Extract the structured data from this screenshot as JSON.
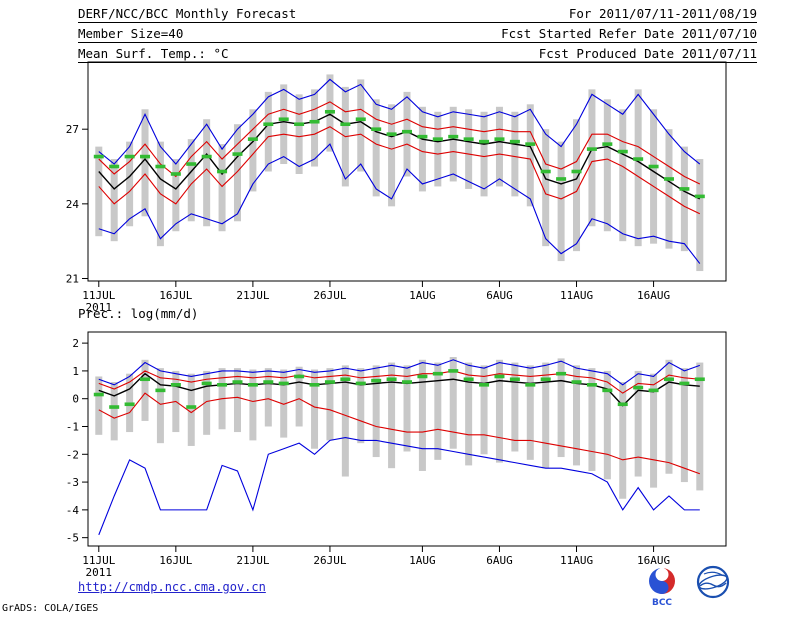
{
  "header": {
    "title": "DERF/NCC/BCC Monthly Forecast",
    "period": "For 2011/07/11-2011/08/19",
    "member_size": "Member Size=40",
    "refer_date": "Fcst Started Refer Date 2011/07/10",
    "produced_date": "Fcst Produced Date 2011/07/11"
  },
  "footer": {
    "url": "http://cmdp.ncc.cma.gov.cn",
    "credit": "GrADS: COLA/IGES",
    "bcc_logo_label": "BCC"
  },
  "chart_data": [
    {
      "type": "line",
      "title": "Mean Surf. Temp.: °C",
      "x_tick_labels": [
        "11JUL",
        "16JUL",
        "21JUL",
        "26JUL",
        "1AUG",
        "6AUG",
        "11AUG",
        "16AUG"
      ],
      "x_tick_days": [
        0,
        5,
        10,
        15,
        21,
        26,
        31,
        36
      ],
      "x_year_label": "2011",
      "ylim": [
        20.9,
        29.7
      ],
      "yticks": [
        21,
        24,
        27
      ],
      "grid": false,
      "legend": "none",
      "series": {
        "spread_bars": {
          "name": "ensemble-spread-bars",
          "color": "#c8c8c8",
          "high": [
            26.3,
            25.8,
            26.5,
            27.8,
            26.5,
            25.8,
            26.6,
            27.4,
            26.4,
            27.2,
            27.8,
            28.5,
            28.8,
            28.4,
            28.6,
            29.2,
            28.7,
            29.0,
            28.2,
            28.0,
            28.5,
            27.9,
            27.7,
            27.9,
            27.8,
            27.7,
            27.9,
            27.7,
            28.0,
            27.0,
            26.5,
            27.4,
            28.6,
            28.2,
            27.8,
            28.6,
            27.8,
            27.0,
            26.3,
            25.8
          ],
          "low": [
            22.7,
            22.5,
            23.1,
            23.5,
            22.3,
            22.9,
            23.3,
            23.1,
            22.9,
            23.3,
            24.5,
            25.3,
            25.6,
            25.2,
            25.5,
            26.1,
            24.7,
            25.3,
            24.3,
            23.9,
            25.1,
            24.5,
            24.7,
            24.9,
            24.6,
            24.3,
            24.7,
            24.3,
            23.9,
            22.3,
            21.7,
            22.1,
            23.1,
            22.9,
            22.5,
            22.3,
            22.4,
            22.2,
            22.1,
            21.3
          ]
        },
        "max": {
          "name": "ensemble-max",
          "color": "#0000dd",
          "values": [
            26.1,
            25.6,
            26.3,
            27.6,
            26.3,
            25.6,
            26.4,
            27.2,
            26.2,
            27.0,
            27.6,
            28.3,
            28.6,
            28.2,
            28.4,
            29.0,
            28.5,
            28.8,
            28.0,
            27.8,
            28.3,
            27.7,
            27.5,
            27.7,
            27.6,
            27.5,
            27.7,
            27.5,
            27.8,
            26.8,
            26.3,
            27.2,
            28.4,
            28.0,
            27.6,
            28.4,
            27.6,
            26.8,
            26.1,
            25.6
          ]
        },
        "min": {
          "name": "ensemble-min",
          "color": "#0000dd",
          "values": [
            23.0,
            22.8,
            23.4,
            23.8,
            22.6,
            23.2,
            23.6,
            23.4,
            23.2,
            23.6,
            24.8,
            25.6,
            25.9,
            25.5,
            25.8,
            26.4,
            25.0,
            25.6,
            24.6,
            24.2,
            25.4,
            24.8,
            25.0,
            25.2,
            24.9,
            24.6,
            25.0,
            24.6,
            24.2,
            22.6,
            22.0,
            22.4,
            23.4,
            23.2,
            22.8,
            22.6,
            22.7,
            22.5,
            22.4,
            21.6
          ]
        },
        "upper": {
          "name": "upper-spread",
          "color": "#dd0000",
          "values": [
            25.8,
            25.2,
            25.7,
            26.4,
            25.6,
            25.1,
            25.9,
            26.5,
            25.8,
            26.4,
            27.0,
            27.6,
            27.8,
            27.6,
            27.8,
            28.1,
            27.7,
            27.8,
            27.4,
            27.2,
            27.4,
            27.1,
            27.0,
            27.1,
            27.0,
            26.9,
            27.0,
            26.9,
            26.9,
            25.6,
            25.4,
            25.7,
            26.8,
            26.8,
            26.5,
            26.3,
            25.9,
            25.5,
            25.1,
            24.8
          ]
        },
        "lower": {
          "name": "lower-spread",
          "color": "#dd0000",
          "values": [
            24.7,
            24.0,
            24.5,
            25.2,
            24.4,
            24.0,
            24.8,
            25.4,
            24.7,
            25.3,
            26.0,
            26.7,
            26.8,
            26.7,
            26.8,
            27.1,
            26.7,
            26.8,
            26.4,
            26.2,
            26.4,
            26.1,
            26.0,
            26.1,
            26.0,
            25.9,
            26.0,
            25.9,
            25.8,
            24.4,
            24.2,
            24.5,
            25.7,
            25.8,
            25.5,
            25.1,
            24.7,
            24.3,
            23.9,
            23.6
          ]
        },
        "mean": {
          "name": "ensemble-mean",
          "color": "#000000",
          "values": [
            25.3,
            24.6,
            25.1,
            25.8,
            25.0,
            24.6,
            25.3,
            26.0,
            25.2,
            25.9,
            26.5,
            27.2,
            27.3,
            27.2,
            27.3,
            27.6,
            27.2,
            27.3,
            26.9,
            26.7,
            26.9,
            26.6,
            26.5,
            26.6,
            26.5,
            26.4,
            26.5,
            26.4,
            26.3,
            25.0,
            24.8,
            25.0,
            26.2,
            26.3,
            26.0,
            25.7,
            25.3,
            24.9,
            24.5,
            24.2
          ]
        },
        "dashes": {
          "name": "green-dash-estimate",
          "color": "#33bb33",
          "values": [
            25.9,
            25.5,
            25.9,
            25.9,
            25.5,
            25.2,
            25.6,
            25.9,
            25.3,
            26.0,
            26.6,
            27.2,
            27.4,
            27.2,
            27.3,
            27.7,
            27.2,
            27.4,
            27.0,
            26.8,
            26.9,
            26.7,
            26.6,
            26.7,
            26.6,
            26.5,
            26.6,
            26.5,
            26.4,
            25.3,
            25.0,
            25.3,
            26.2,
            26.4,
            26.1,
            25.8,
            25.5,
            25.0,
            24.6,
            24.3
          ]
        }
      }
    },
    {
      "type": "line",
      "title": "Prec.: log(mm/d)",
      "x_tick_labels": [
        "11JUL",
        "16JUL",
        "21JUL",
        "26JUL",
        "1AUG",
        "6AUG",
        "11AUG",
        "16AUG"
      ],
      "x_tick_days": [
        0,
        5,
        10,
        15,
        21,
        26,
        31,
        36
      ],
      "x_year_label": "2011",
      "ylim": [
        -5.3,
        2.4
      ],
      "yticks": [
        -5,
        -4,
        -3,
        -2,
        -1,
        0,
        1,
        2
      ],
      "grid": false,
      "legend": "none",
      "series": {
        "spread_bars": {
          "name": "ensemble-spread-bars",
          "color": "#c8c8c8",
          "high": [
            0.8,
            0.6,
            0.9,
            1.4,
            1.1,
            1.0,
            0.9,
            1.0,
            1.1,
            1.1,
            1.05,
            1.1,
            1.05,
            1.15,
            1.05,
            1.1,
            1.2,
            1.1,
            1.2,
            1.3,
            1.2,
            1.4,
            1.3,
            1.5,
            1.3,
            1.2,
            1.4,
            1.3,
            1.2,
            1.3,
            1.45,
            1.2,
            1.1,
            1.0,
            0.6,
            1.0,
            0.9,
            1.4,
            1.1,
            1.3
          ],
          "low": [
            -1.3,
            -1.5,
            -1.2,
            -0.8,
            -1.6,
            -1.2,
            -1.7,
            -1.3,
            -1.1,
            -1.2,
            -1.5,
            -1.0,
            -1.4,
            -1.0,
            -1.8,
            -1.5,
            -2.8,
            -1.6,
            -2.1,
            -2.5,
            -1.9,
            -2.6,
            -2.2,
            -1.8,
            -2.4,
            -2.0,
            -2.3,
            -1.9,
            -2.2,
            -2.5,
            -2.1,
            -2.4,
            -2.6,
            -2.9,
            -3.6,
            -2.8,
            -3.2,
            -2.7,
            -3.0,
            -3.3
          ]
        },
        "max": {
          "name": "ensemble-max",
          "color": "#0000dd",
          "values": [
            0.7,
            0.5,
            0.8,
            1.3,
            1.0,
            0.9,
            0.8,
            0.9,
            1.0,
            1.0,
            0.95,
            1.0,
            0.95,
            1.05,
            0.95,
            1.0,
            1.1,
            1.0,
            1.1,
            1.2,
            1.1,
            1.3,
            1.2,
            1.4,
            1.2,
            1.1,
            1.3,
            1.2,
            1.1,
            1.2,
            1.35,
            1.1,
            1.0,
            0.9,
            0.5,
            0.9,
            0.8,
            1.3,
            1.0,
            1.2
          ]
        },
        "min": {
          "name": "ensemble-min",
          "color": "#0000dd",
          "values": [
            -4.9,
            -3.5,
            -2.2,
            -2.5,
            -4.0,
            -4.0,
            -4.0,
            -4.0,
            -2.4,
            -2.6,
            -4.0,
            -2.0,
            -1.8,
            -1.6,
            -2.0,
            -1.5,
            -1.4,
            -1.5,
            -1.5,
            -1.6,
            -1.7,
            -1.8,
            -1.8,
            -1.9,
            -2.0,
            -2.1,
            -2.2,
            -2.3,
            -2.4,
            -2.5,
            -2.5,
            -2.6,
            -2.7,
            -3.0,
            -4.0,
            -3.2,
            -4.0,
            -3.5,
            -4.0,
            -4.0
          ]
        },
        "upper": {
          "name": "upper-spread",
          "color": "#dd0000",
          "values": [
            0.55,
            0.35,
            0.6,
            1.0,
            0.75,
            0.7,
            0.6,
            0.7,
            0.75,
            0.8,
            0.75,
            0.8,
            0.75,
            0.85,
            0.75,
            0.8,
            0.85,
            0.75,
            0.8,
            0.85,
            0.8,
            0.9,
            0.9,
            1.0,
            0.85,
            0.8,
            0.9,
            0.85,
            0.8,
            0.85,
            0.9,
            0.8,
            0.75,
            0.6,
            0.2,
            0.55,
            0.5,
            0.85,
            0.75,
            0.7
          ]
        },
        "lower": {
          "name": "lower-spread",
          "color": "#dd0000",
          "values": [
            -0.4,
            -0.7,
            -0.5,
            0.2,
            -0.2,
            -0.1,
            -0.5,
            -0.1,
            0.0,
            0.05,
            -0.1,
            0.0,
            -0.2,
            0.0,
            -0.3,
            -0.4,
            -0.6,
            -0.8,
            -1.0,
            -1.1,
            -1.2,
            -1.2,
            -1.1,
            -1.2,
            -1.3,
            -1.3,
            -1.4,
            -1.5,
            -1.5,
            -1.6,
            -1.7,
            -1.8,
            -1.9,
            -2.0,
            -2.2,
            -2.1,
            -2.2,
            -2.3,
            -2.5,
            -2.7
          ]
        },
        "mean": {
          "name": "ensemble-mean",
          "color": "#000000",
          "values": [
            0.3,
            0.1,
            0.35,
            0.9,
            0.5,
            0.45,
            0.3,
            0.45,
            0.5,
            0.55,
            0.5,
            0.55,
            0.5,
            0.6,
            0.5,
            0.55,
            0.6,
            0.5,
            0.55,
            0.6,
            0.55,
            0.6,
            0.65,
            0.7,
            0.6,
            0.55,
            0.65,
            0.6,
            0.55,
            0.6,
            0.65,
            0.55,
            0.5,
            0.35,
            -0.25,
            0.3,
            0.25,
            0.6,
            0.5,
            0.45
          ]
        },
        "dashes": {
          "name": "green-dash-estimate",
          "color": "#33bb33",
          "values": [
            0.15,
            -0.3,
            -0.2,
            0.7,
            0.3,
            0.5,
            -0.3,
            0.55,
            0.5,
            0.6,
            0.5,
            0.6,
            0.55,
            0.8,
            0.5,
            0.6,
            0.7,
            0.55,
            0.65,
            0.7,
            0.6,
            0.8,
            0.9,
            1.0,
            0.7,
            0.5,
            0.8,
            0.7,
            0.5,
            0.7,
            0.9,
            0.6,
            0.5,
            0.3,
            -0.2,
            0.4,
            0.3,
            0.7,
            0.55,
            0.7
          ]
        }
      }
    }
  ]
}
